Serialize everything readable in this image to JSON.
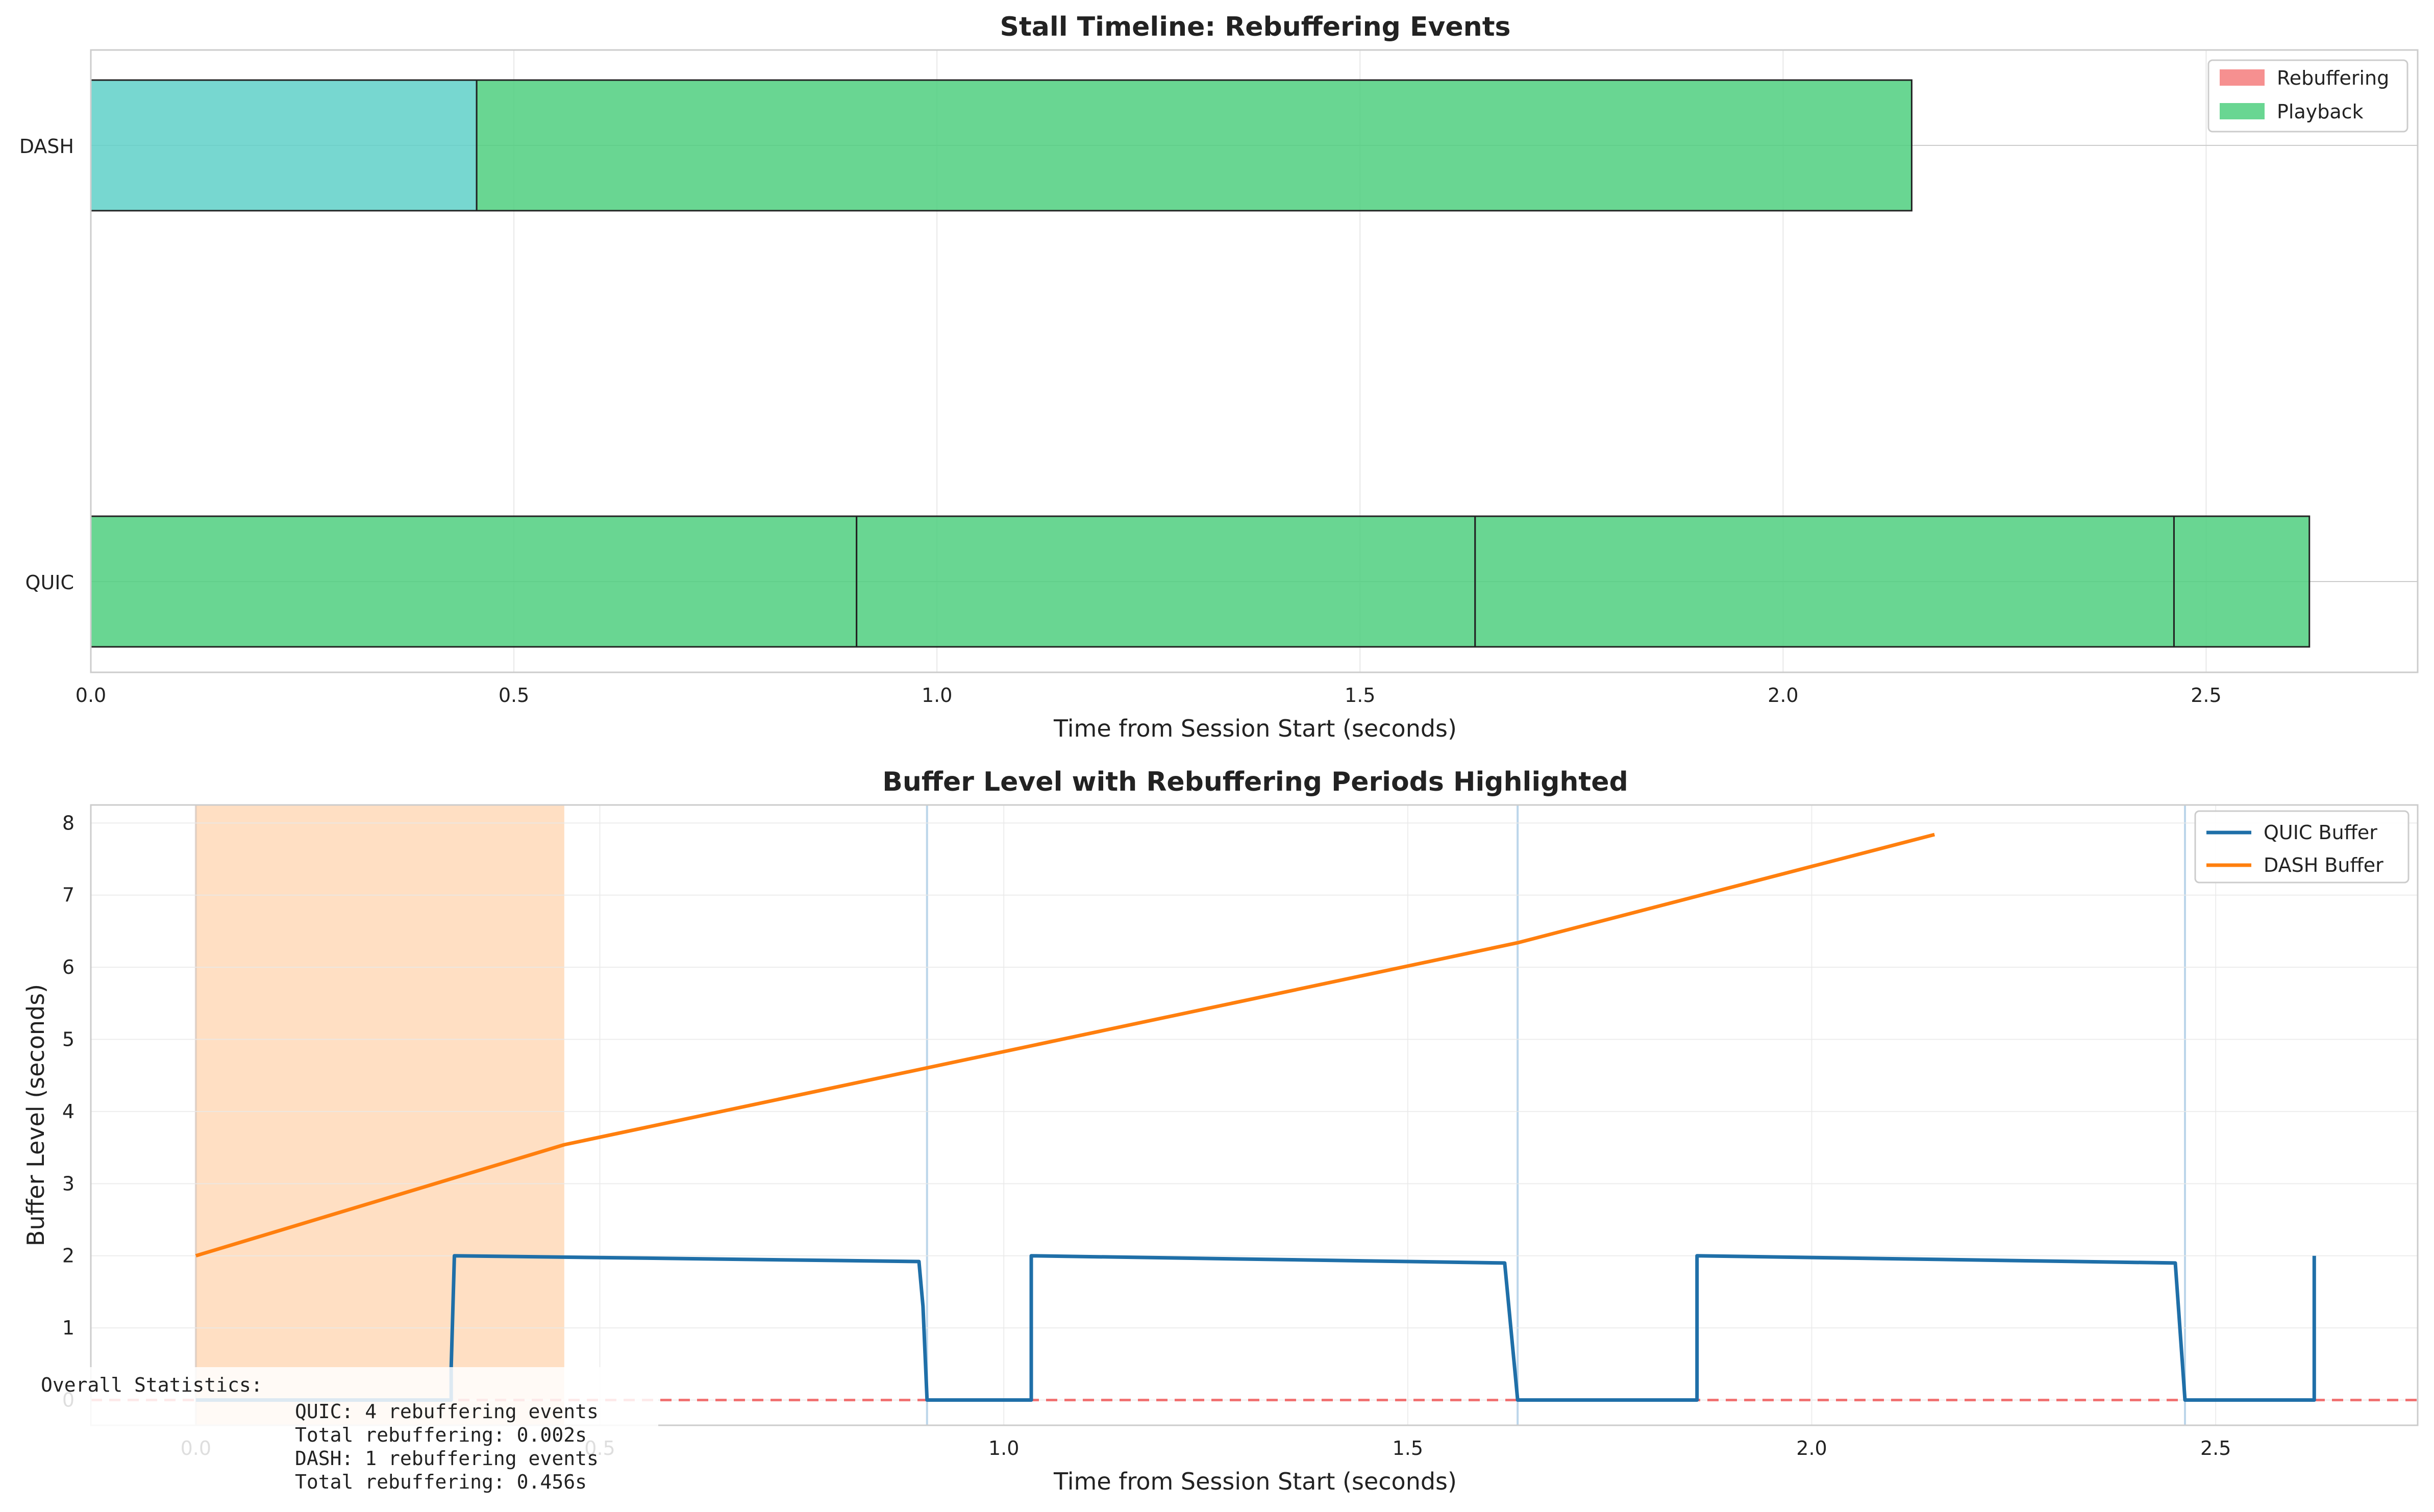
{
  "colors": {
    "rebuffering": "#f47c7c",
    "playback": "#4fcf7f",
    "dash_rebuffer_bar": "#5fd0c8",
    "quic_line": "#1f6fa8",
    "dash_line": "#ff7f0e",
    "dash_rebuffer_span": "#ffdcbc",
    "quic_rebuffer_span": "#bcd6ea",
    "threshold": "#f05a5a",
    "grid": "#e8e8e8",
    "axis": "#cccccc",
    "text": "#222222"
  },
  "chart_data": [
    {
      "type": "bar",
      "orientation": "horizontal",
      "title": "Stall Timeline: Rebuffering Events",
      "xlabel": "Time from Session Start (seconds)",
      "ylabel": "",
      "xlim": [
        0.0,
        2.75
      ],
      "xticks": [
        "0.0",
        "0.5",
        "1.0",
        "1.5",
        "2.0",
        "2.5"
      ],
      "categories": [
        "DASH",
        "QUIC"
      ],
      "legend": [
        "Rebuffering",
        "Playback"
      ],
      "legend_position": "top-right",
      "grid": true,
      "segments": {
        "DASH": [
          {
            "start": 0.0,
            "end": 0.456,
            "kind": "rebuffer-start"
          },
          {
            "start": 0.456,
            "end": 2.152,
            "kind": "Playback"
          }
        ],
        "QUIC": [
          {
            "start": 0.0,
            "end": 0.905,
            "kind": "Playback"
          },
          {
            "start": 0.905,
            "end": 1.636,
            "kind": "Playback"
          },
          {
            "start": 1.636,
            "end": 2.462,
            "kind": "Playback"
          },
          {
            "start": 2.462,
            "end": 2.622,
            "kind": "Playback"
          }
        ]
      }
    },
    {
      "type": "line",
      "title": "Buffer Level with Rebuffering Periods Highlighted",
      "xlabel": "Time from Session Start (seconds)",
      "ylabel": "Buffer Level (seconds)",
      "xlim": [
        -0.13,
        2.75
      ],
      "ylim": [
        -0.35,
        8.25
      ],
      "xticks": [
        "0.0",
        "0.5",
        "1.0",
        "1.5",
        "2.0",
        "2.5"
      ],
      "yticks": [
        "0",
        "1",
        "2",
        "3",
        "4",
        "5",
        "6",
        "7",
        "8"
      ],
      "legend_position": "top-right",
      "grid": true,
      "threshold_y": 0.0,
      "dash_rebuffer_spans": [
        [
          0.0,
          0.456
        ]
      ],
      "quic_rebuffer_marks": [
        0.905,
        1.636,
        2.462
      ],
      "series": [
        {
          "name": "QUIC Buffer",
          "x": [
            0.0,
            0.316,
            0.316,
            0.32,
            0.895,
            0.9,
            0.905,
            0.905,
            1.034,
            1.034,
            1.62,
            1.636,
            1.636,
            1.858,
            1.858,
            2.45,
            2.462,
            2.462,
            2.622,
            2.622
          ],
          "y": [
            0.0,
            0.0,
            0.45,
            2.0,
            1.92,
            1.3,
            0.0,
            0.0,
            0.0,
            2.0,
            1.9,
            0.0,
            0.0,
            0.0,
            2.0,
            1.9,
            0.0,
            0.0,
            0.0,
            2.0
          ]
        },
        {
          "name": "DASH Buffer",
          "x": [
            0.0,
            0.456,
            1.636,
            2.152
          ],
          "y": [
            2.0,
            3.54,
            6.34,
            7.84
          ]
        }
      ],
      "annotation": {
        "title": "Overall Statistics:",
        "lines": [
          "QUIC: 4 rebuffering events",
          "Total rebuffering: 0.002s",
          "DASH: 1 rebuffering events",
          "Total rebuffering: 0.456s"
        ]
      }
    }
  ]
}
